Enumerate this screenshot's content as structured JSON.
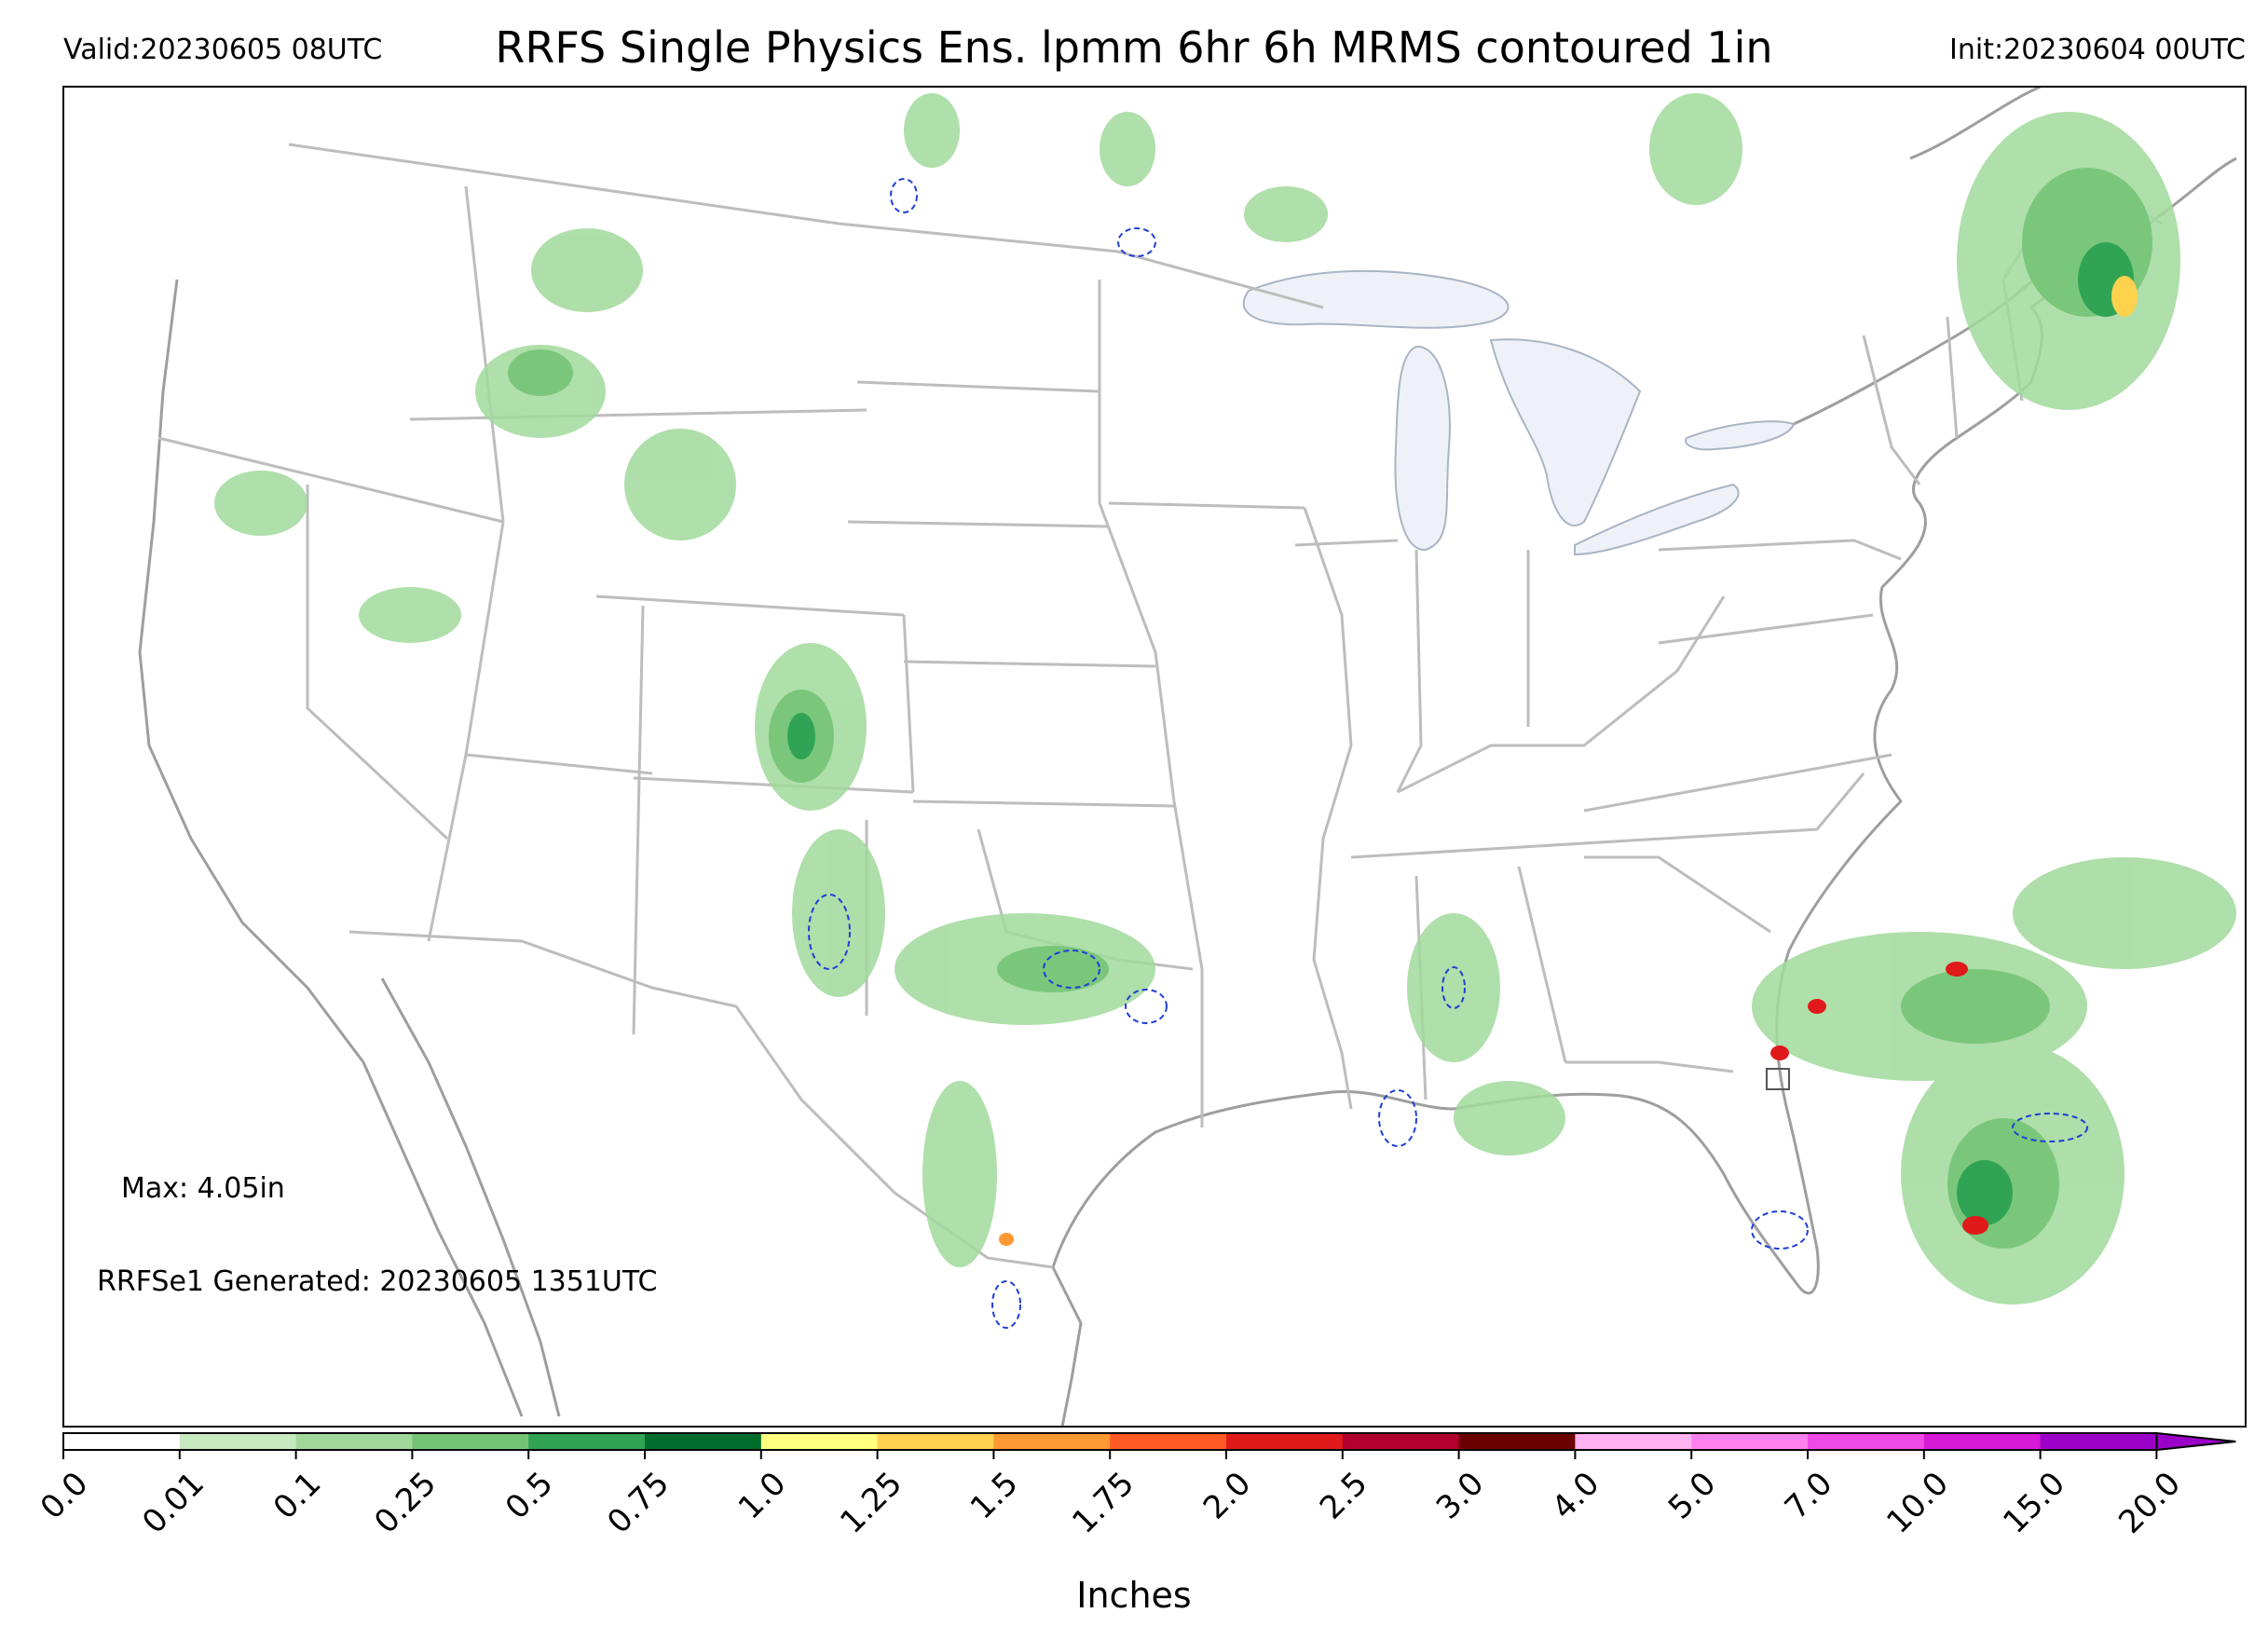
{
  "header": {
    "valid": "Valid:20230605 08UTC",
    "title": "RRFS Single Physics Ens. lpmm 6hr 6h MRMS contoured 1in",
    "init": "Init:20230604 00UTC"
  },
  "notes": {
    "max": "Max: 4.05in",
    "generated": "RRFSe1 Generated: 20230605 1351UTC"
  },
  "colorbar": {
    "title": "Inches",
    "labels": [
      "0.0",
      "0.01",
      "0.1",
      "0.25",
      "0.5",
      "0.75",
      "1.0",
      "1.25",
      "1.5",
      "1.75",
      "2.0",
      "2.5",
      "3.0",
      "4.0",
      "5.0",
      "7.0",
      "10.0",
      "15.0",
      "20.0"
    ],
    "colors": [
      "#ffffff",
      "#c7e9c0",
      "#a1d99b",
      "#74c476",
      "#31a354",
      "#006d2c",
      "#ffff80",
      "#ffd24d",
      "#ff9933",
      "#ff5a26",
      "#e01a1a",
      "#b2002e",
      "#6b0000",
      "#ffb3f2",
      "#ff80ee",
      "#f04ae6",
      "#d61ad6",
      "#9a00c8"
    ]
  },
  "map_colors": {
    "state_lines": "#bdbdbd",
    "coast_lines": "#9e9e9e",
    "lakes": "#eef2f8",
    "mrms_contour": "#1f3fd6"
  }
}
